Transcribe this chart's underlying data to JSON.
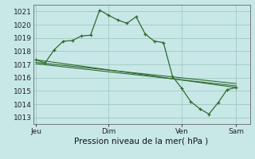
{
  "bg_color": "#c8e8e8",
  "line_color": "#2d6a2d",
  "grid_color": "#a0c8c0",
  "title": "Pression niveau de la mer( hPa )",
  "ylim_min": 1012.5,
  "ylim_max": 1021.5,
  "yticks": [
    1013,
    1014,
    1015,
    1016,
    1017,
    1018,
    1019,
    1020,
    1021
  ],
  "xtick_labels": [
    "Jeu",
    "Dim",
    "Ven",
    "Sam"
  ],
  "xtick_positions": [
    0,
    8,
    16,
    22
  ],
  "xlim_min": -0.3,
  "xlim_max": 23.5,
  "series1_x": [
    0,
    1,
    2,
    3,
    4,
    5,
    6,
    7,
    8,
    9,
    10,
    11,
    12,
    13,
    14,
    15,
    16,
    17,
    18,
    19,
    20,
    21,
    22
  ],
  "series1_y": [
    1017.35,
    1017.1,
    1018.1,
    1018.75,
    1018.8,
    1019.15,
    1019.2,
    1021.1,
    1020.7,
    1020.35,
    1020.1,
    1020.6,
    1019.3,
    1018.75,
    1018.65,
    1016.1,
    1015.2,
    1014.2,
    1013.65,
    1013.25,
    1014.1,
    1015.1,
    1015.25
  ],
  "series2_x": [
    0,
    22
  ],
  "series2_y": [
    1017.35,
    1015.25
  ],
  "series3_x": [
    0,
    22
  ],
  "series3_y": [
    1017.15,
    1015.55
  ],
  "series4_x": [
    0,
    22
  ],
  "series4_y": [
    1017.05,
    1015.38
  ]
}
